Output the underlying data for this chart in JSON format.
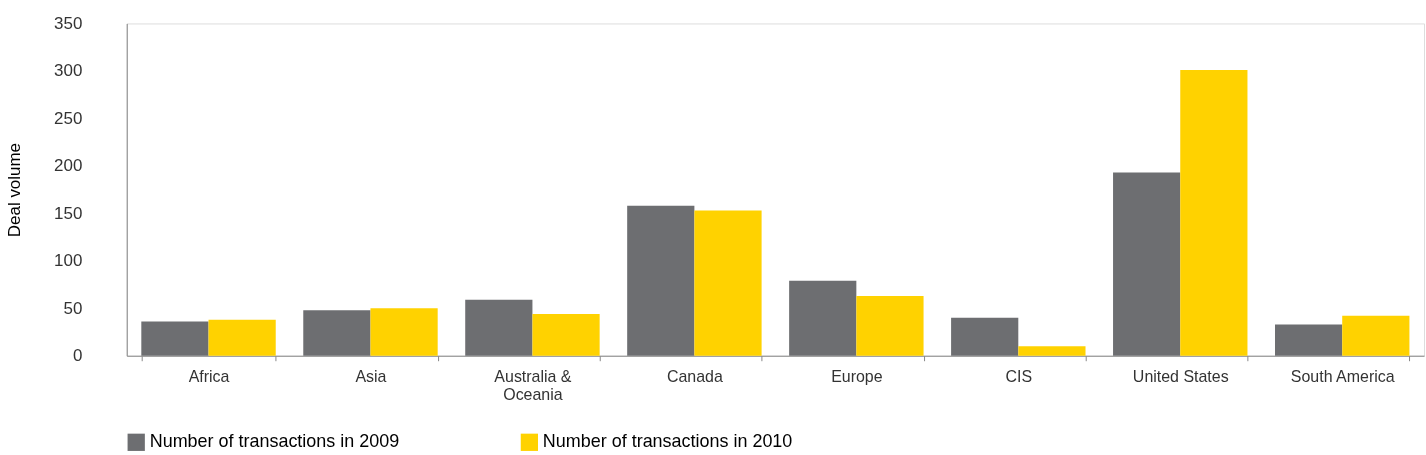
{
  "chart_data": {
    "type": "bar",
    "ylabel": "Deal volume",
    "categories": [
      "Africa",
      "Asia",
      "Australia & Oceania",
      "Canada",
      "Europe",
      "CIS",
      "United States",
      "South America"
    ],
    "series": [
      {
        "name": "Number of transactions in 2009",
        "color": "#6d6e71",
        "values": [
          36,
          48,
          59,
          158,
          79,
          40,
          193,
          33
        ]
      },
      {
        "name": "Number of transactions in 2010",
        "color": "#ffd200",
        "values": [
          38,
          50,
          44,
          153,
          63,
          10,
          301,
          42
        ]
      }
    ],
    "ylim": [
      0,
      350
    ],
    "yticks": [
      0,
      50,
      100,
      150,
      200,
      250,
      300,
      350
    ],
    "grid": false,
    "legend": "bottom left"
  }
}
